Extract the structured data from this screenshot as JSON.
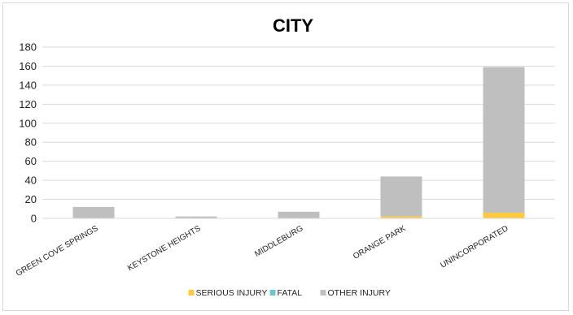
{
  "chart_data": {
    "type": "bar",
    "stacked": true,
    "title": "CITY",
    "xlabel": "",
    "ylabel": "",
    "categories": [
      "GREEN COVE SPRINGS",
      "KEYSTONE HEIGHTS",
      "MIDDLEBURG",
      "ORANGE PARK",
      "UNINCORPORATED"
    ],
    "series": [
      {
        "name": "SERIOUS INJURY",
        "color": "#ffc941",
        "values": [
          0,
          0,
          0,
          2,
          6
        ]
      },
      {
        "name": "FATAL",
        "color": "#70c6cf",
        "values": [
          0,
          0,
          0,
          0,
          0
        ]
      },
      {
        "name": "OTHER INJURY",
        "color": "#bfbfbf",
        "values": [
          12,
          2,
          7,
          42,
          153
        ]
      }
    ],
    "ylim": [
      0,
      180
    ],
    "yticks": [
      "0",
      "20",
      "40",
      "60",
      "80",
      "100",
      "120",
      "140",
      "160",
      "180"
    ],
    "ytick_values": [
      0,
      20,
      40,
      60,
      80,
      100,
      120,
      140,
      160,
      180
    ],
    "grid": true,
    "legend_position": "bottom"
  }
}
